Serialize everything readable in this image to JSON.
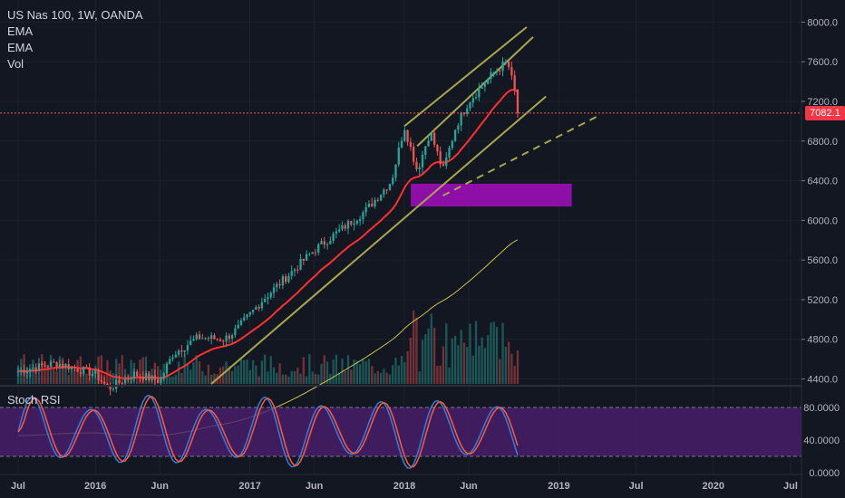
{
  "legend": {
    "symbol": "US Nas 100, 1W, OANDA",
    "ema1": "EMA",
    "ema2": "EMA",
    "vol": "Vol"
  },
  "stoch_label": "Stoch RSI",
  "last_price": "7082.1",
  "colors": {
    "background": "#131722",
    "up": "#26a69a",
    "down": "#ef5350",
    "ema_fast": "#ff2f2f",
    "ema_slow": "#c8c24a",
    "trendline": "#a6a94b",
    "zone": "#8e0fa8",
    "stoch_k": "#2f7fe0",
    "stoch_d": "#ff5a3c",
    "stoch_band": "#4b1e6e"
  },
  "chart_data": [
    {
      "type": "candlestick",
      "title": "US Nas 100, 1W, OANDA",
      "x_ticks": [
        "Jul",
        "2016",
        "Jun",
        "2017",
        "Jun",
        "2018",
        "Jun",
        "2019",
        "Jul",
        "2020",
        "Jul"
      ],
      "y_ticks": [
        "8000.0",
        "7600.0",
        "7200.0",
        "6800.0",
        "6400.0",
        "6000.0",
        "5600.0",
        "5200.0",
        "4800.0",
        "4400.0"
      ],
      "ylim": [
        4350,
        8150
      ],
      "last_value": 7082.1,
      "anchors": [
        {
          "t": "2015-07",
          "v": 4480
        },
        {
          "t": "2015-10",
          "v": 4560
        },
        {
          "t": "2016-01",
          "v": 4450
        },
        {
          "t": "2016-02",
          "v": 4300
        },
        {
          "t": "2016-04",
          "v": 4450
        },
        {
          "t": "2016-06",
          "v": 4380
        },
        {
          "t": "2016-07",
          "v": 4650
        },
        {
          "t": "2016-09",
          "v": 4820
        },
        {
          "t": "2016-11",
          "v": 4800
        },
        {
          "t": "2016-12",
          "v": 4900
        },
        {
          "t": "2017-02",
          "v": 5200
        },
        {
          "t": "2017-04",
          "v": 5450
        },
        {
          "t": "2017-06",
          "v": 5700
        },
        {
          "t": "2017-08",
          "v": 5900
        },
        {
          "t": "2017-10",
          "v": 6100
        },
        {
          "t": "2017-12",
          "v": 6400
        },
        {
          "t": "2018-01",
          "v": 6950
        },
        {
          "t": "2018-02",
          "v": 6500
        },
        {
          "t": "2018-03",
          "v": 6900
        },
        {
          "t": "2018-04",
          "v": 6500
        },
        {
          "t": "2018-05",
          "v": 6950
        },
        {
          "t": "2018-06",
          "v": 7200
        },
        {
          "t": "2018-07",
          "v": 7350
        },
        {
          "t": "2018-08",
          "v": 7500
        },
        {
          "t": "2018-09",
          "v": 7600
        },
        {
          "t": "2018-10",
          "v": 7082
        }
      ],
      "zone": {
        "from": 6140,
        "to": 6370
      },
      "stoch_ticks": [
        "80.0000",
        "40.0000",
        "0.0000"
      ],
      "stoch_bands": [
        80,
        20
      ]
    }
  ]
}
